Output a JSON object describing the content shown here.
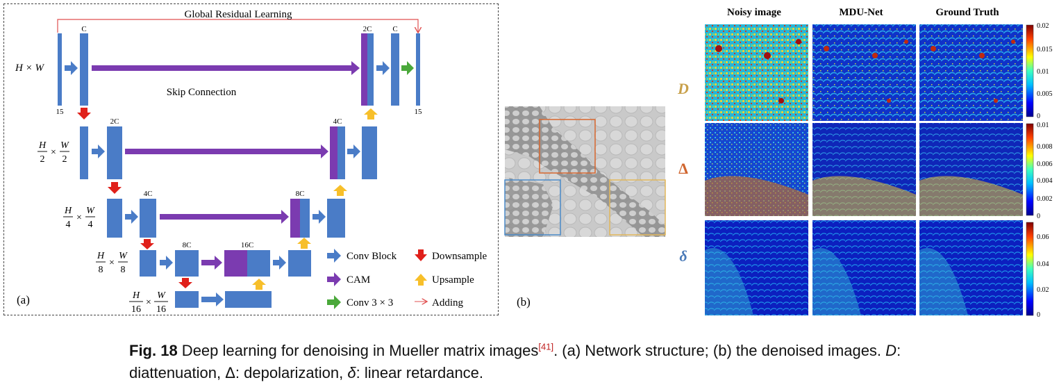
{
  "panel_a": {
    "label": "(a)",
    "global_residual": "Global Residual Learning",
    "skip_connection": "Skip Connection",
    "rows": [
      {
        "res_num": "H × W",
        "res_den": "",
        "res_frac2_num": "",
        "res_frac2_den": ""
      },
      {
        "res_num": "H",
        "res_den": "2",
        "res_frac2_num": "W",
        "res_frac2_den": "2"
      },
      {
        "res_num": "H",
        "res_den": "4",
        "res_frac2_num": "W",
        "res_frac2_den": "4"
      },
      {
        "res_num": "H",
        "res_den": "8",
        "res_frac2_num": "W",
        "res_frac2_den": "8"
      },
      {
        "res_num": "H",
        "res_den": "16",
        "res_frac2_num": "W",
        "res_frac2_den": "16"
      }
    ],
    "channel_labels": {
      "c_top": "C",
      "in15": "15",
      "out15": "15",
      "c2_top": "2C",
      "c_out": "C",
      "c2_r2": "2C",
      "c4_r2": "4C",
      "c4_r3": "4C",
      "c8_r3": "8C",
      "c8_r4": "8C",
      "c16_r4": "16C"
    },
    "legend": {
      "conv_block": "Conv Block",
      "downsample": "Downsample",
      "cam": "CAM",
      "upsample": "Upsample",
      "conv33": "Conv 3 × 3",
      "adding": "Adding"
    },
    "colors": {
      "block": "#4a7cc7",
      "cam": "#7b3bb0",
      "down": "#e0201a",
      "up": "#f7bf2a",
      "conv33": "#4aa83a",
      "add": "#e05050"
    }
  },
  "panel_b": {
    "label": "(b)",
    "box_colors": {
      "orange": "#d8672e",
      "blue": "#4a8ac8",
      "yellow": "#e2b75a"
    }
  },
  "panel_c": {
    "col_headers": [
      "Noisy image",
      "MDU-Net",
      "Ground Truth"
    ],
    "row_labels": [
      {
        "symbol": "D",
        "color": "#c8a04a"
      },
      {
        "symbol": "Δ",
        "color": "#d0652e"
      },
      {
        "symbol": "δ",
        "color": "#4a7ab8"
      }
    ],
    "colorbars": [
      {
        "ticks": [
          "0.02",
          "0.015",
          "0.01",
          "0.005",
          "0"
        ]
      },
      {
        "ticks": [
          "0.01",
          "0.008",
          "0.006",
          "0.004",
          "0.002",
          "0"
        ]
      },
      {
        "ticks": [
          "0.06",
          "0.04",
          "0.02",
          "0"
        ]
      }
    ]
  },
  "caption": {
    "fig": "Fig. 18",
    "text1": " Deep learning for denoising in Mueller matrix images",
    "ref": "[41]",
    "text2": ". (a) Network structure; (b) the denoised images. ",
    "d": "D",
    "text3": ": diattenuation, Δ: depolarization, ",
    "delta": "δ",
    "text4": ": linear retardance."
  }
}
